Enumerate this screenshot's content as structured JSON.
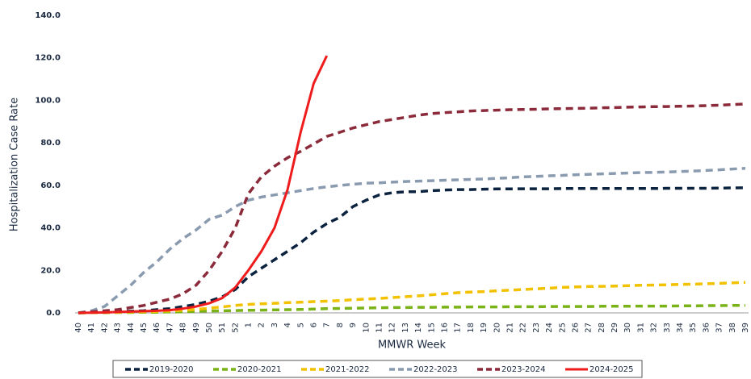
{
  "chart_data": {
    "type": "line",
    "y_label": "Hospitalization Case Rate",
    "x_label": "MMWR Week",
    "categories": [
      "40",
      "41",
      "42",
      "43",
      "44",
      "45",
      "46",
      "47",
      "48",
      "49",
      "50",
      "51",
      "52",
      "1",
      "2",
      "3",
      "4",
      "5",
      "6",
      "7",
      "8",
      "9",
      "10",
      "11",
      "12",
      "13",
      "14",
      "15",
      "16",
      "17",
      "18",
      "19",
      "20",
      "21",
      "22",
      "23",
      "24",
      "25",
      "26",
      "27",
      "28",
      "29",
      "30",
      "31",
      "32",
      "33",
      "34",
      "35",
      "36",
      "37",
      "38",
      "39"
    ],
    "ylim": [
      0,
      140
    ],
    "yticks": [
      {
        "value": 0,
        "label": "0.0"
      },
      {
        "value": 20,
        "label": "20.0"
      },
      {
        "value": 40,
        "label": "40.0"
      },
      {
        "value": 60,
        "label": "60.0"
      },
      {
        "value": 80,
        "label": "80.0"
      },
      {
        "value": 100,
        "label": "100.0"
      },
      {
        "value": 120,
        "label": "120.0"
      },
      {
        "value": 140,
        "label": "140.0"
      }
    ],
    "grid": false,
    "legend": "bottom",
    "series": [
      {
        "name": "2019-2020",
        "color": "#0c2340",
        "style": "dashed",
        "values": [
          0,
          0.2,
          0.4,
          0.6,
          0.8,
          1,
          1.5,
          2,
          3,
          4,
          5.5,
          7.5,
          11,
          17,
          21,
          25,
          29,
          33,
          38,
          42,
          45,
          50,
          53,
          55.5,
          56.5,
          57,
          57,
          57.5,
          57.8,
          58,
          58,
          58.2,
          58.3,
          58.3,
          58.4,
          58.4,
          58.4,
          58.5,
          58.5,
          58.5,
          58.5,
          58.5,
          58.5,
          58.5,
          58.5,
          58.6,
          58.6,
          58.6,
          58.6,
          58.7,
          58.8,
          58.9
        ]
      },
      {
        "name": "2020-2021",
        "color": "#7ab317",
        "style": "dashed",
        "values": [
          0,
          0.1,
          0.1,
          0.2,
          0.2,
          0.3,
          0.3,
          0.4,
          0.5,
          0.7,
          0.9,
          1,
          1.1,
          1.2,
          1.3,
          1.4,
          1.5,
          1.6,
          1.8,
          2,
          2.1,
          2.2,
          2.3,
          2.4,
          2.5,
          2.5,
          2.6,
          2.6,
          2.7,
          2.7,
          2.8,
          2.8,
          2.8,
          2.9,
          2.9,
          2.9,
          3,
          3,
          3,
          3,
          3.1,
          3.1,
          3.1,
          3.2,
          3.2,
          3.2,
          3.3,
          3.3,
          3.4,
          3.4,
          3.5,
          3.5
        ]
      },
      {
        "name": "2021-2022",
        "color": "#f2c100",
        "style": "dashed",
        "values": [
          0,
          0.1,
          0.2,
          0.3,
          0.4,
          0.5,
          0.7,
          0.9,
          1.2,
          1.6,
          2.2,
          2.8,
          3.5,
          4,
          4.3,
          4.5,
          4.8,
          5,
          5.3,
          5.5,
          5.8,
          6.2,
          6.5,
          6.8,
          7.2,
          7.6,
          8,
          8.5,
          9,
          9.5,
          9.8,
          10,
          10.4,
          10.7,
          11,
          11.3,
          11.6,
          12,
          12.2,
          12.4,
          12.5,
          12.6,
          12.8,
          13,
          13.1,
          13.2,
          13.4,
          13.5,
          13.7,
          13.9,
          14.1,
          14.3
        ]
      },
      {
        "name": "2022-2023",
        "color": "#8a9bb0",
        "style": "dashed",
        "values": [
          0,
          1,
          3,
          8,
          13,
          19,
          24,
          30,
          35,
          39,
          44,
          46,
          50,
          53,
          54.5,
          55.5,
          56.5,
          57.5,
          58.5,
          59.3,
          60,
          60.5,
          61,
          61.2,
          61.5,
          61.8,
          62,
          62.2,
          62.4,
          62.6,
          62.8,
          63,
          63.3,
          63.6,
          64,
          64.2,
          64.5,
          64.7,
          65,
          65.2,
          65.4,
          65.6,
          65.8,
          66,
          66.1,
          66.3,
          66.5,
          66.7,
          67,
          67.3,
          67.7,
          68
        ]
      },
      {
        "name": "2023-2024",
        "color": "#8b2a3a",
        "style": "dashed",
        "values": [
          0,
          0.5,
          1,
          1.5,
          2.5,
          3.5,
          5,
          6.5,
          9,
          13,
          20,
          29,
          40,
          56,
          64,
          69,
          73,
          76,
          79.5,
          83,
          85,
          87,
          88.5,
          90,
          91,
          92,
          93,
          93.8,
          94.2,
          94.6,
          95,
          95.2,
          95.4,
          95.6,
          95.7,
          95.8,
          96,
          96.1,
          96.2,
          96.3,
          96.5,
          96.6,
          96.8,
          96.9,
          97,
          97.1,
          97.2,
          97.3,
          97.5,
          97.7,
          98,
          98.3
        ]
      },
      {
        "name": "2024-2025",
        "color": "#ee1c1c",
        "style": "solid",
        "values": [
          0,
          0.1,
          0.2,
          0.4,
          0.6,
          0.8,
          1,
          1.3,
          2,
          3,
          4.5,
          7,
          12,
          20,
          29,
          40,
          58,
          85,
          108,
          121,
          null,
          null,
          null,
          null,
          null,
          null,
          null,
          null,
          null,
          null,
          null,
          null,
          null,
          null,
          null,
          null,
          null,
          null,
          null,
          null,
          null,
          null,
          null,
          null,
          null,
          null,
          null,
          null,
          null,
          null,
          null,
          null
        ]
      }
    ]
  }
}
